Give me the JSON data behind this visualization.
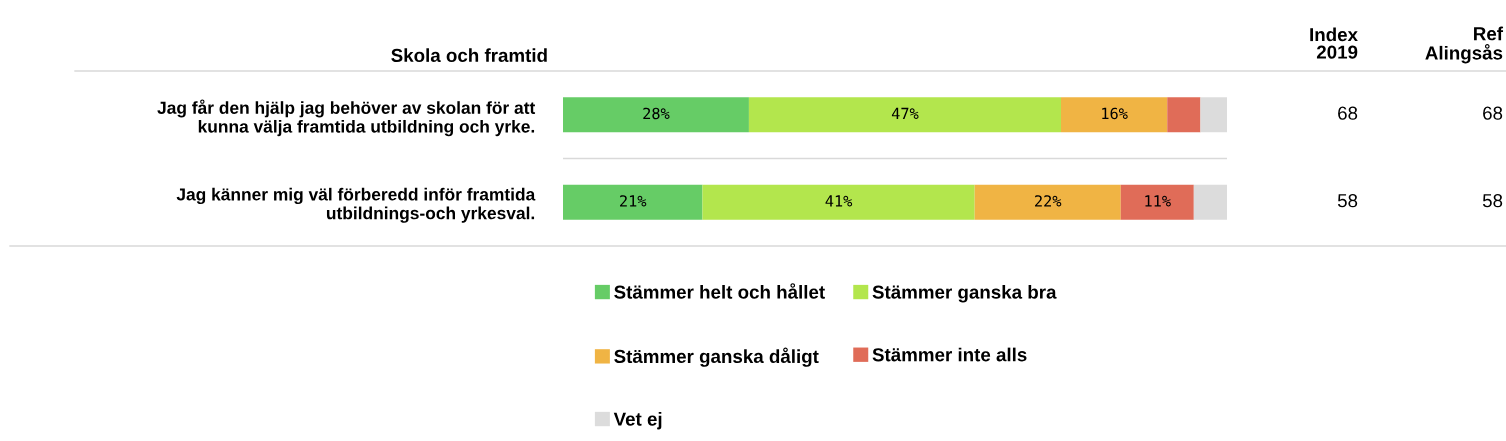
{
  "chart_data": {
    "type": "bar",
    "orientation": "horizontal",
    "stacked": true,
    "title": "Skola och framtid",
    "categories": [
      "Jag får den hjälp jag behöver av skolan för att\nkunna välja framtida utbildning och yrke.",
      "Jag känner mig väl förberedd inför framtida\nutbildnings-och yrkesval."
    ],
    "series": [
      {
        "name": "Stämmer helt och hållet",
        "color": "#66cc66",
        "values": [
          28,
          21
        ],
        "value_labels": [
          "28%",
          "21%"
        ]
      },
      {
        "name": "Stämmer ganska bra",
        "color": "#b3e64d",
        "values": [
          47,
          41
        ],
        "value_labels": [
          "47%",
          "41%"
        ]
      },
      {
        "name": "Stämmer ganska dåligt",
        "color": "#f0b444",
        "values": [
          16,
          22
        ],
        "value_labels": [
          "16%",
          "22%"
        ]
      },
      {
        "name": "Stämmer inte alls",
        "color": "#e06c58",
        "values": [
          5,
          11
        ],
        "value_labels": [
          null,
          "11%"
        ]
      },
      {
        "name": "Vet ej",
        "color": "#dcdcdc",
        "values": [
          4,
          5
        ],
        "value_labels": [
          null,
          null
        ]
      }
    ],
    "xlim": [
      0,
      100
    ],
    "annotations": [
      "Index\n2019",
      "Ref\nAlingsås",
      "68",
      "68",
      "58",
      "58"
    ],
    "legend": "bottom",
    "grid": false,
    "tick_labels": "y"
  }
}
